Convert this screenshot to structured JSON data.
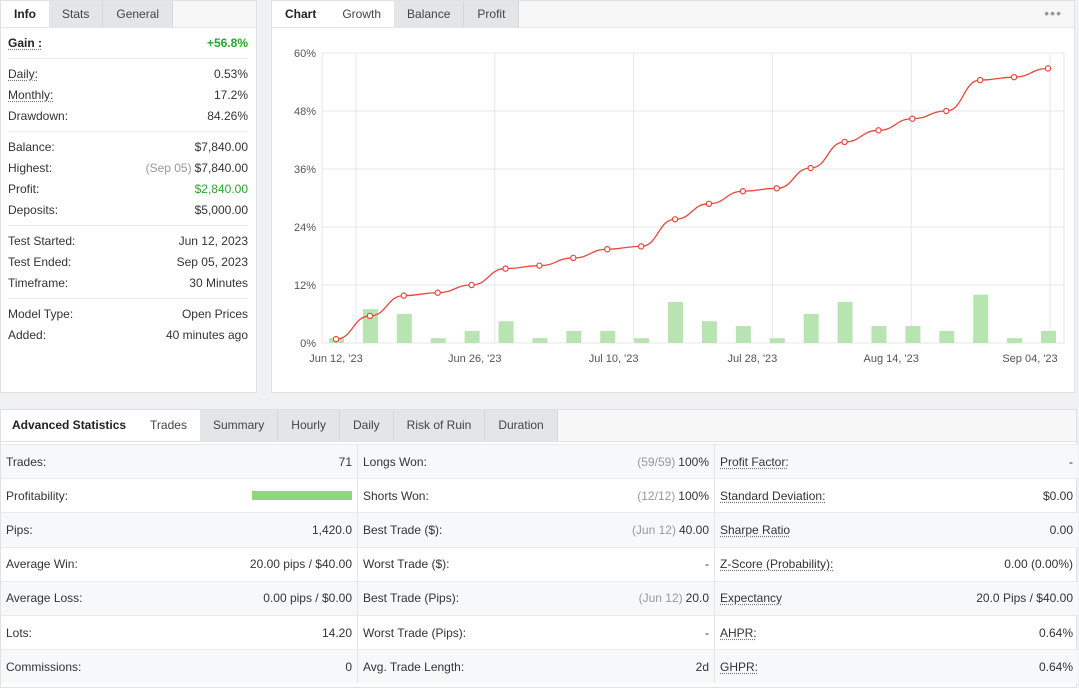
{
  "info_panel": {
    "tabs": [
      "Info",
      "Stats",
      "General"
    ],
    "gain": {
      "label": "Gain :",
      "value": "+56.8%"
    },
    "group1": [
      {
        "label": "Daily:",
        "value": "0.53%",
        "underline": true
      },
      {
        "label": "Monthly:",
        "value": "17.2%",
        "underline": true
      },
      {
        "label": "Drawdown:",
        "value": "84.26%",
        "underline": false
      }
    ],
    "group2": [
      {
        "label": "Balance:",
        "value": "$7,840.00"
      },
      {
        "label": "Highest:",
        "muted": "(Sep 05)",
        "value": "$7,840.00"
      },
      {
        "label": "Profit:",
        "value": "$2,840.00",
        "color": "green"
      },
      {
        "label": "Deposits:",
        "value": "$5,000.00"
      }
    ],
    "group3": [
      {
        "label": "Test Started:",
        "value": "Jun 12, 2023"
      },
      {
        "label": "Test Ended:",
        "value": "Sep 05, 2023"
      },
      {
        "label": "Timeframe:",
        "value": "30 Minutes"
      }
    ],
    "group4": [
      {
        "label": "Model Type:",
        "value": "Open Prices"
      },
      {
        "label": "Added:",
        "value": "40 minutes ago"
      }
    ]
  },
  "chart_panel": {
    "tabs": [
      "Chart",
      "Growth",
      "Balance",
      "Profit"
    ],
    "menu_icon": "ellipsis-icon"
  },
  "chart_data": {
    "type": "line",
    "title": "",
    "y_ticks": [
      "0%",
      "12%",
      "24%",
      "36%",
      "48%",
      "60%"
    ],
    "ylim": [
      0,
      60
    ],
    "x_tick_labels": [
      "Jun 12, '23",
      "Jun 26, '23",
      "Jul 10, '23",
      "Jul 28, '23",
      "Aug 14, '23",
      "Sep 04, '23"
    ],
    "grid": true,
    "line_color": "#e8473d",
    "bar_color": "#b7e4b0",
    "series": [
      {
        "kind": "line",
        "values": [
          0.8,
          5.6,
          9.8,
          10.4,
          12.0,
          15.4,
          16.0,
          17.6,
          19.4,
          20.0,
          25.6,
          28.8,
          31.4,
          32.0,
          36.2,
          41.6,
          44.0,
          46.4,
          48.0,
          54.4,
          55.0,
          56.8
        ]
      },
      {
        "kind": "bar",
        "values": [
          1,
          7,
          6,
          1,
          2.5,
          4.5,
          1,
          2.5,
          2.5,
          1,
          8.5,
          4.5,
          3.5,
          1,
          6,
          8.5,
          3.5,
          3.5,
          2.5,
          10,
          1,
          2.5
        ]
      }
    ]
  },
  "advanced": {
    "title": "Advanced Statistics",
    "tabs": [
      "Trades",
      "Summary",
      "Hourly",
      "Daily",
      "Risk of Ruin",
      "Duration"
    ],
    "rows": [
      [
        {
          "label": "Trades:",
          "value": "71"
        },
        {
          "label": "Longs Won:",
          "muted": "(59/59)",
          "value": "100%"
        },
        {
          "label": "Profit Factor:",
          "value": "-",
          "underline": true
        }
      ],
      [
        {
          "label": "Profitability:",
          "value": "",
          "bar": 1.0
        },
        {
          "label": "Shorts Won:",
          "muted": "(12/12)",
          "value": "100%"
        },
        {
          "label": "Standard Deviation:",
          "value": "$0.00",
          "underline": true
        }
      ],
      [
        {
          "label": "Pips:",
          "value": "1,420.0"
        },
        {
          "label": "Best Trade ($):",
          "muted": "(Jun 12)",
          "value": "40.00"
        },
        {
          "label": "Sharpe Ratio",
          "value": "0.00",
          "underline": true
        }
      ],
      [
        {
          "label": "Average Win:",
          "value": "20.00 pips / $40.00"
        },
        {
          "label": "Worst Trade ($):",
          "value": "-"
        },
        {
          "label": "Z-Score (Probability):",
          "value": "0.00 (0.00%)",
          "underline": true
        }
      ],
      [
        {
          "label": "Average Loss:",
          "value": "0.00 pips / $0.00"
        },
        {
          "label": "Best Trade (Pips):",
          "muted": "(Jun 12)",
          "value": "20.0"
        },
        {
          "label": "Expectancy",
          "value": "20.0 Pips / $40.00",
          "underline": true
        }
      ],
      [
        {
          "label": "Lots:",
          "value": "14.20"
        },
        {
          "label": "Worst Trade (Pips):",
          "value": "-"
        },
        {
          "label": "AHPR:",
          "value": "0.64%",
          "underline": true
        }
      ],
      [
        {
          "label": "Commissions:",
          "value": "0"
        },
        {
          "label": "Avg. Trade Length:",
          "value": "2d"
        },
        {
          "label": "GHPR:",
          "value": "0.64%",
          "underline": true
        }
      ]
    ]
  }
}
